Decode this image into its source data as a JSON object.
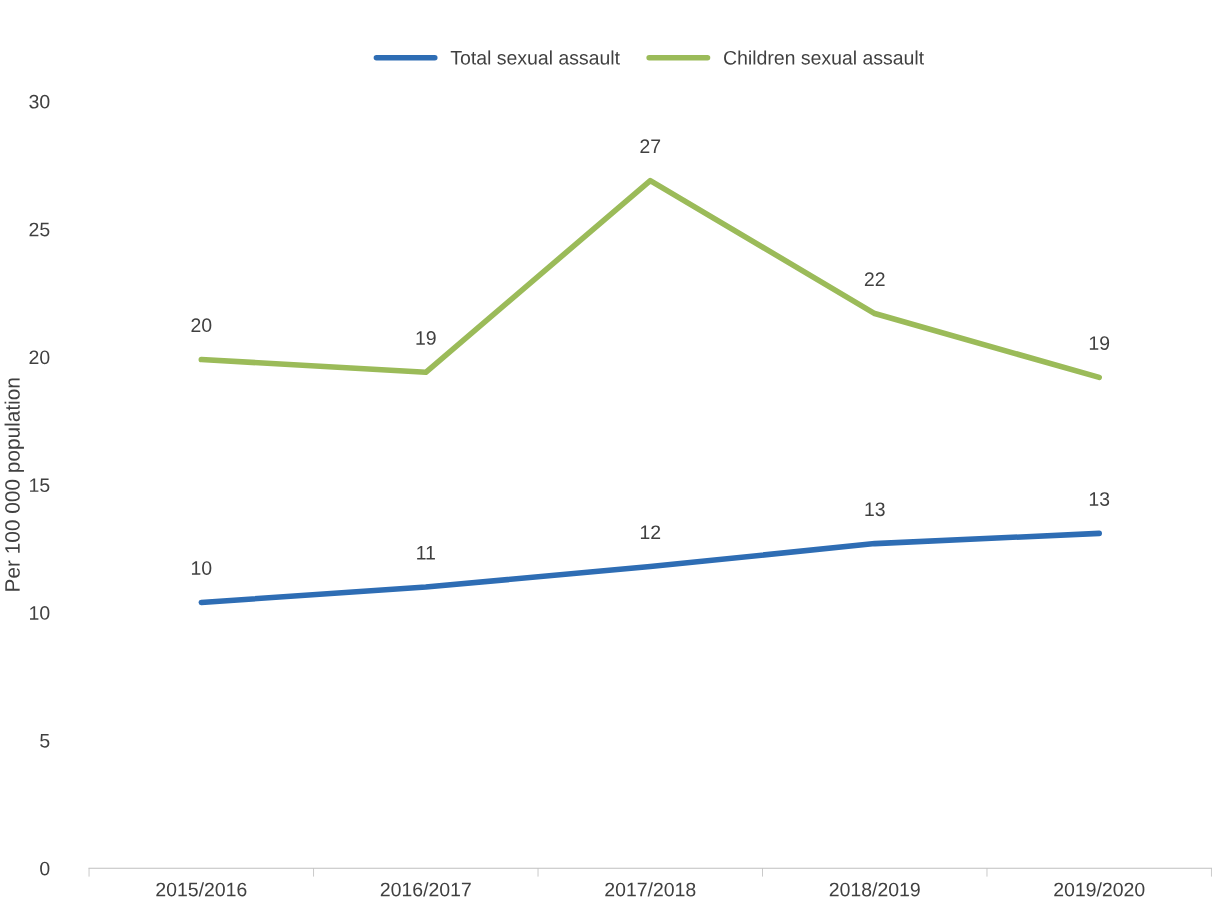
{
  "chart_data": {
    "type": "line",
    "ylabel": "Per 100 000 population",
    "categories": [
      "2015/2016",
      "2016/2017",
      "2017/2018",
      "2018/2019",
      "2019/2020"
    ],
    "series": [
      {
        "name": "Total sexual assault",
        "color": "#2e6db4",
        "values": [
          10.4,
          11.0,
          11.8,
          12.7,
          13.1
        ],
        "value_labels": [
          "10",
          "11",
          "12",
          "13",
          "13"
        ]
      },
      {
        "name": "Children sexual assault",
        "color": "#9bbb59",
        "values": [
          19.9,
          19.4,
          26.9,
          21.7,
          19.2
        ],
        "value_labels": [
          "20",
          "19",
          "27",
          "22",
          "19"
        ]
      }
    ],
    "ylim": [
      0,
      30
    ],
    "yticks": [
      0,
      5,
      10,
      15,
      20,
      25,
      30
    ],
    "grid": false,
    "legend": "top",
    "marker": "none",
    "line_style": "solid"
  }
}
